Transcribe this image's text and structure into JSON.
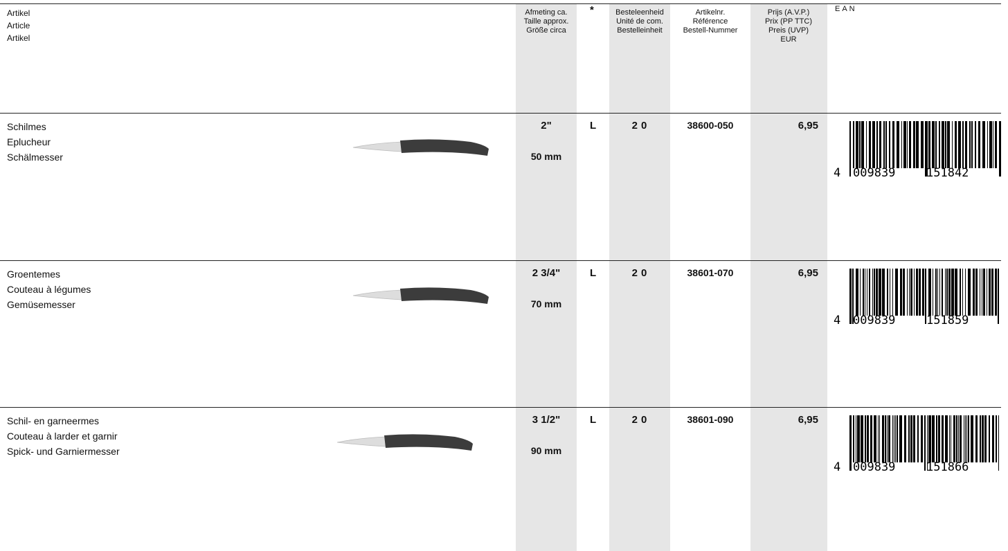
{
  "header": {
    "article": [
      "Artikel",
      "Article",
      "Artikel"
    ],
    "size": [
      "Afmeting ca.",
      "Taille approx.",
      "Größe circa"
    ],
    "star": "*",
    "unit": [
      "Besteleenheid",
      "Unité de com.",
      "Bestelleinheit"
    ],
    "article_no": [
      "Artikelnr.",
      "Référence",
      "Bestell-Nummer"
    ],
    "price": [
      "Prijs (A.V.P.)",
      "Prix (PP TTC)",
      "Preis (UVP)",
      "EUR"
    ],
    "ean": "EAN"
  },
  "rows": [
    {
      "name": [
        "Schilmes",
        "Eplucheur",
        "Schälmesser"
      ],
      "size_in": "2\"",
      "size_mm": "50 mm",
      "star": "L",
      "unit": "20",
      "article_no": "38600-050",
      "price": "6,95",
      "ean": {
        "first": "4",
        "left": "009839",
        "right": "151842"
      }
    },
    {
      "name": [
        "Groentemes",
        "Couteau à légumes",
        "Gemüsemesser"
      ],
      "size_in": "2 3/4\"",
      "size_mm": "70 mm",
      "star": "L",
      "unit": "20",
      "article_no": "38601-070",
      "price": "6,95",
      "ean": {
        "first": "4",
        "left": "009839",
        "right": "151859"
      }
    },
    {
      "name": [
        "Schil- en garneermes",
        "Couteau à larder et garnir",
        "Spick- und Garniermesser"
      ],
      "size_in": "3 1/2\"",
      "size_mm": "90 mm",
      "star": "L",
      "unit": "20",
      "article_no": "38601-090",
      "price": "6,95",
      "ean": {
        "first": "4",
        "left": "009839",
        "right": "151866"
      }
    }
  ]
}
